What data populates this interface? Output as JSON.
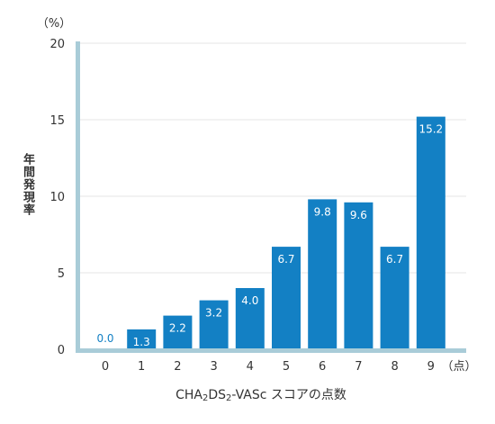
{
  "chart_data": {
    "type": "bar",
    "categories": [
      "0",
      "1",
      "2",
      "3",
      "4",
      "5",
      "6",
      "7",
      "8",
      "9"
    ],
    "values": [
      0.0,
      1.3,
      2.2,
      3.2,
      4.0,
      6.7,
      9.8,
      9.6,
      6.7,
      15.2
    ],
    "data_labels": [
      "0.0",
      "1.3",
      "2.2",
      "3.2",
      "4.0",
      "6.7",
      "9.8",
      "9.6",
      "6.7",
      "15.2"
    ],
    "ylabel": "年間発現率",
    "y_unit": "（%）",
    "x_unit": "（点）",
    "xlabel_parts": {
      "a": "CHA",
      "sub1": "2",
      "b": "DS",
      "sub2": "2",
      "c": "-VASc スコアの点数"
    },
    "ylim": [
      0,
      20
    ],
    "yticks": [
      0,
      5,
      10,
      15,
      20
    ],
    "grid": true,
    "colors": {
      "bar": "#1380c4",
      "axis": "#a9ccd8",
      "grid": "#e6e6e6",
      "zero_label": "#1380c4",
      "label": "#ffffff"
    }
  }
}
